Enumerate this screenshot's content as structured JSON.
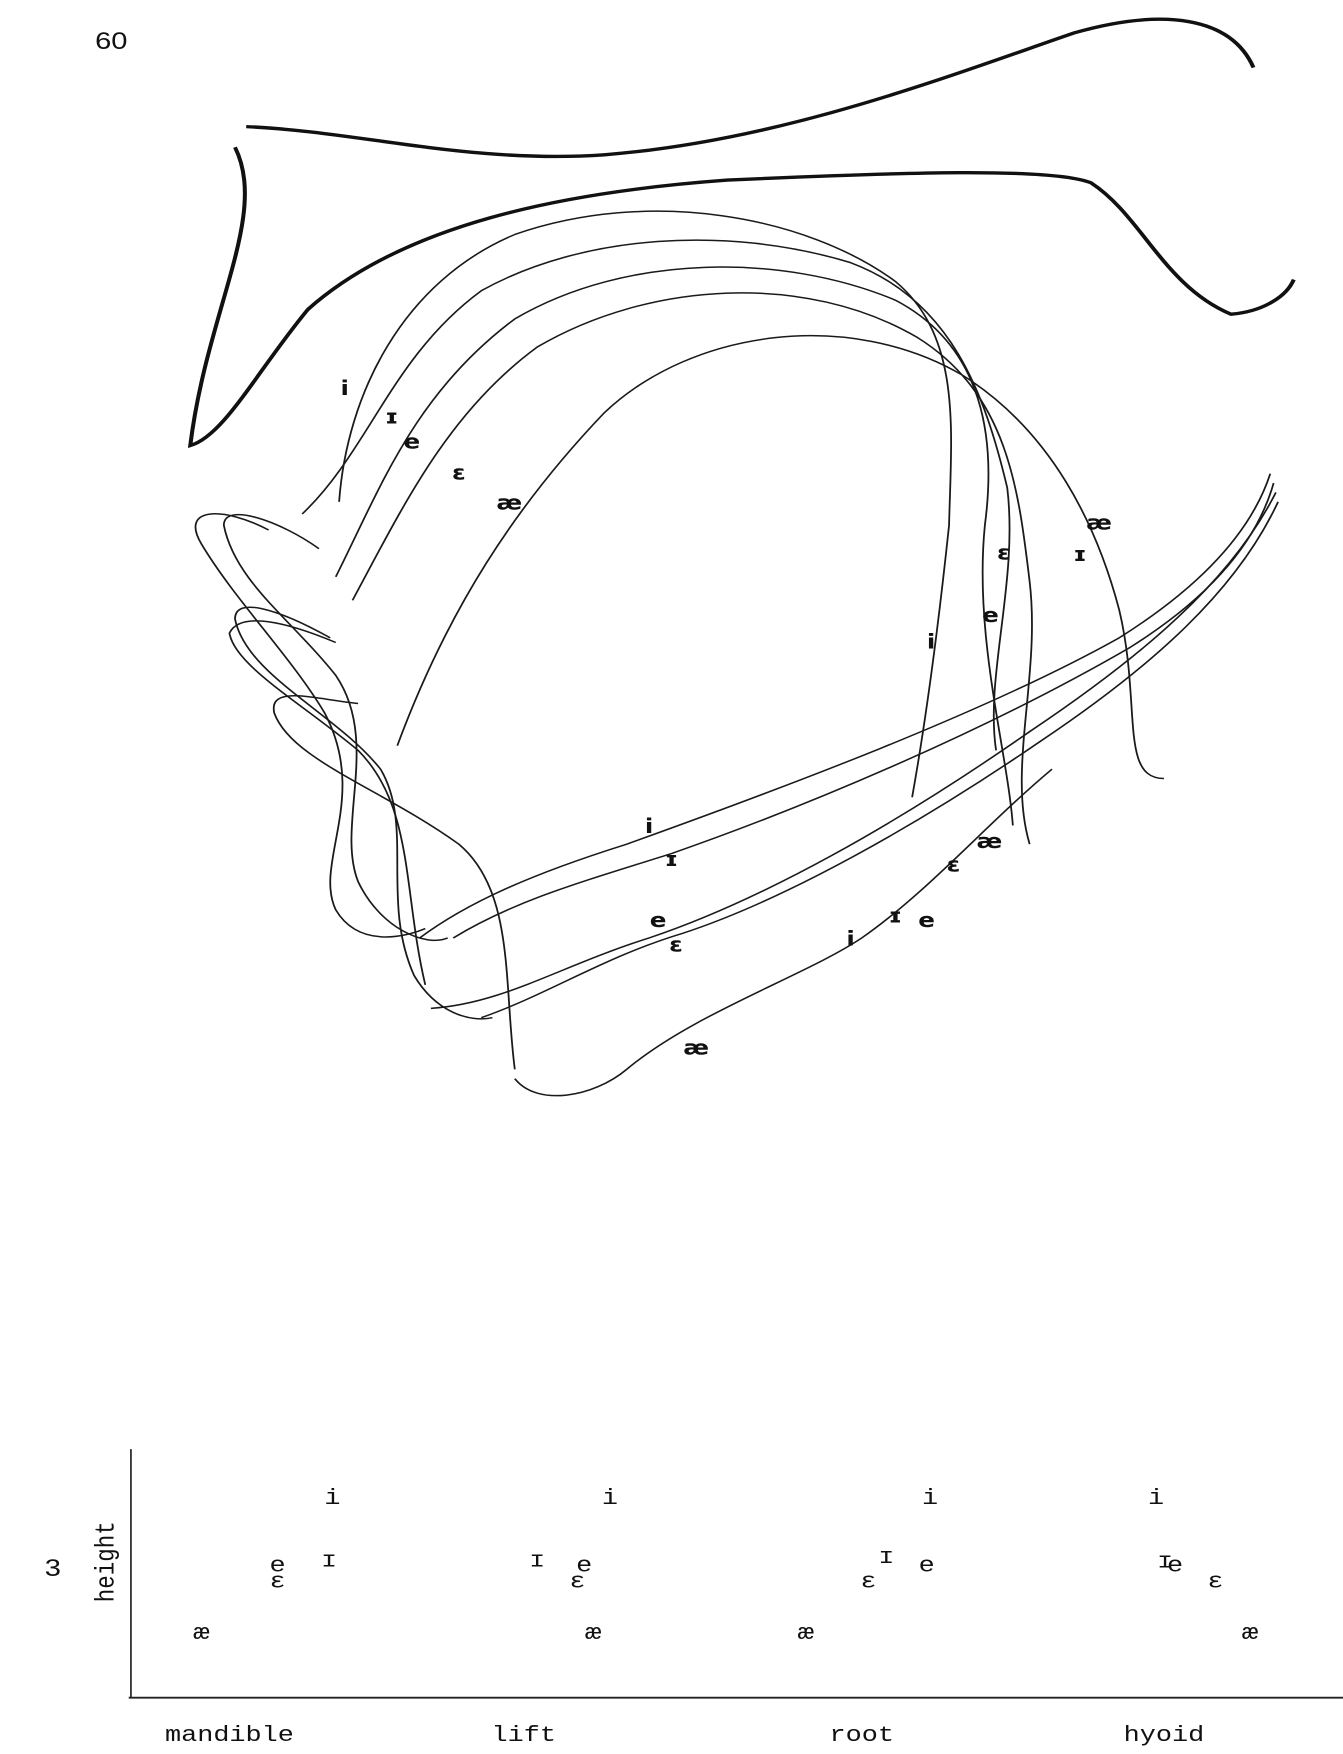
{
  "page_number": "60",
  "tracing": {
    "labels": [
      "i",
      "ɪ",
      "e",
      "ɛ",
      "æ",
      "æ",
      "ɛ",
      "ɪ",
      "e",
      "i",
      "i",
      "ɪ",
      "e",
      "ɛ",
      "æ",
      "ɛ",
      "æ",
      "ɪ",
      "e",
      "i"
    ]
  },
  "margin_mark": "3",
  "plot": {
    "y_label": "height",
    "columns": [
      {
        "label": "mandible",
        "vowels": [
          "i",
          "ɪ",
          "e",
          "ɛ",
          "æ"
        ]
      },
      {
        "label": "lift",
        "vowels": [
          "i",
          "ɪ",
          "e",
          "ɛ",
          "æ"
        ]
      },
      {
        "label": "root",
        "vowels": [
          "i",
          "ɪ",
          "e",
          "ɛ",
          "æ"
        ]
      },
      {
        "label": "hyoid",
        "vowels": [
          "i",
          "ɪ",
          "e",
          "ɛ",
          "æ"
        ]
      }
    ]
  }
}
